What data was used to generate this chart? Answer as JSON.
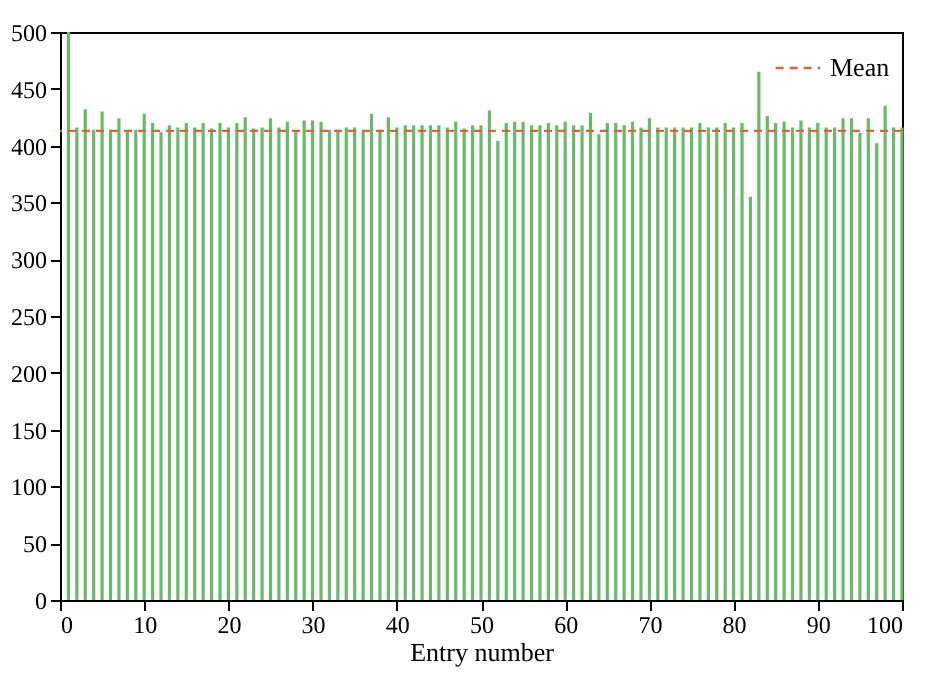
{
  "chart_data": {
    "type": "bar",
    "xlabel": "Entry number",
    "x": [
      1,
      2,
      3,
      4,
      5,
      6,
      7,
      8,
      9,
      10,
      11,
      12,
      13,
      14,
      15,
      16,
      17,
      18,
      19,
      20,
      21,
      22,
      23,
      24,
      25,
      26,
      27,
      28,
      29,
      30,
      31,
      32,
      33,
      34,
      35,
      36,
      37,
      38,
      39,
      40,
      41,
      42,
      43,
      44,
      45,
      46,
      47,
      48,
      49,
      50,
      51,
      52,
      53,
      54,
      55,
      56,
      57,
      58,
      59,
      60,
      61,
      62,
      63,
      64,
      65,
      66,
      67,
      68,
      69,
      70,
      71,
      72,
      73,
      74,
      75,
      76,
      77,
      78,
      79,
      80,
      81,
      82,
      83,
      84,
      85,
      86,
      87,
      88,
      89,
      90,
      91,
      92,
      93,
      94,
      95,
      96,
      97,
      98,
      99,
      100
    ],
    "values": [
      500,
      416,
      432,
      414,
      430,
      414,
      424,
      414,
      414,
      428,
      420,
      412,
      418,
      416,
      420,
      416,
      420,
      415,
      420,
      416,
      420,
      425,
      415,
      416,
      424,
      416,
      421,
      412,
      422,
      422,
      421,
      414,
      414,
      416,
      416,
      412,
      428,
      414,
      425,
      416,
      418,
      418,
      418,
      418,
      418,
      416,
      421,
      415,
      418,
      418,
      431,
      404,
      420,
      421,
      421,
      418,
      418,
      420,
      418,
      421,
      418,
      418,
      429,
      410,
      420,
      420,
      418,
      421,
      416,
      424,
      416,
      416,
      416,
      416,
      416,
      420,
      416,
      416,
      420,
      416,
      420,
      355,
      465,
      426,
      420,
      421,
      416,
      422,
      416,
      420,
      416,
      416,
      424,
      424,
      411,
      424,
      402,
      435,
      416,
      416
    ],
    "color": "#66bb66",
    "xlim": [
      0,
      100
    ],
    "xticks": [
      0,
      10,
      20,
      30,
      40,
      50,
      60,
      70,
      80,
      90,
      100
    ],
    "ylim": [
      0,
      500
    ],
    "yticks": [
      0,
      50,
      100,
      150,
      200,
      250,
      300,
      350,
      400,
      450,
      500
    ],
    "ref_lines": [
      {
        "axis": "y",
        "value": 413,
        "label": "Mean",
        "color": "#e0603a",
        "line_style": "dashed"
      }
    ],
    "legend": "top right",
    "grid": false
  }
}
